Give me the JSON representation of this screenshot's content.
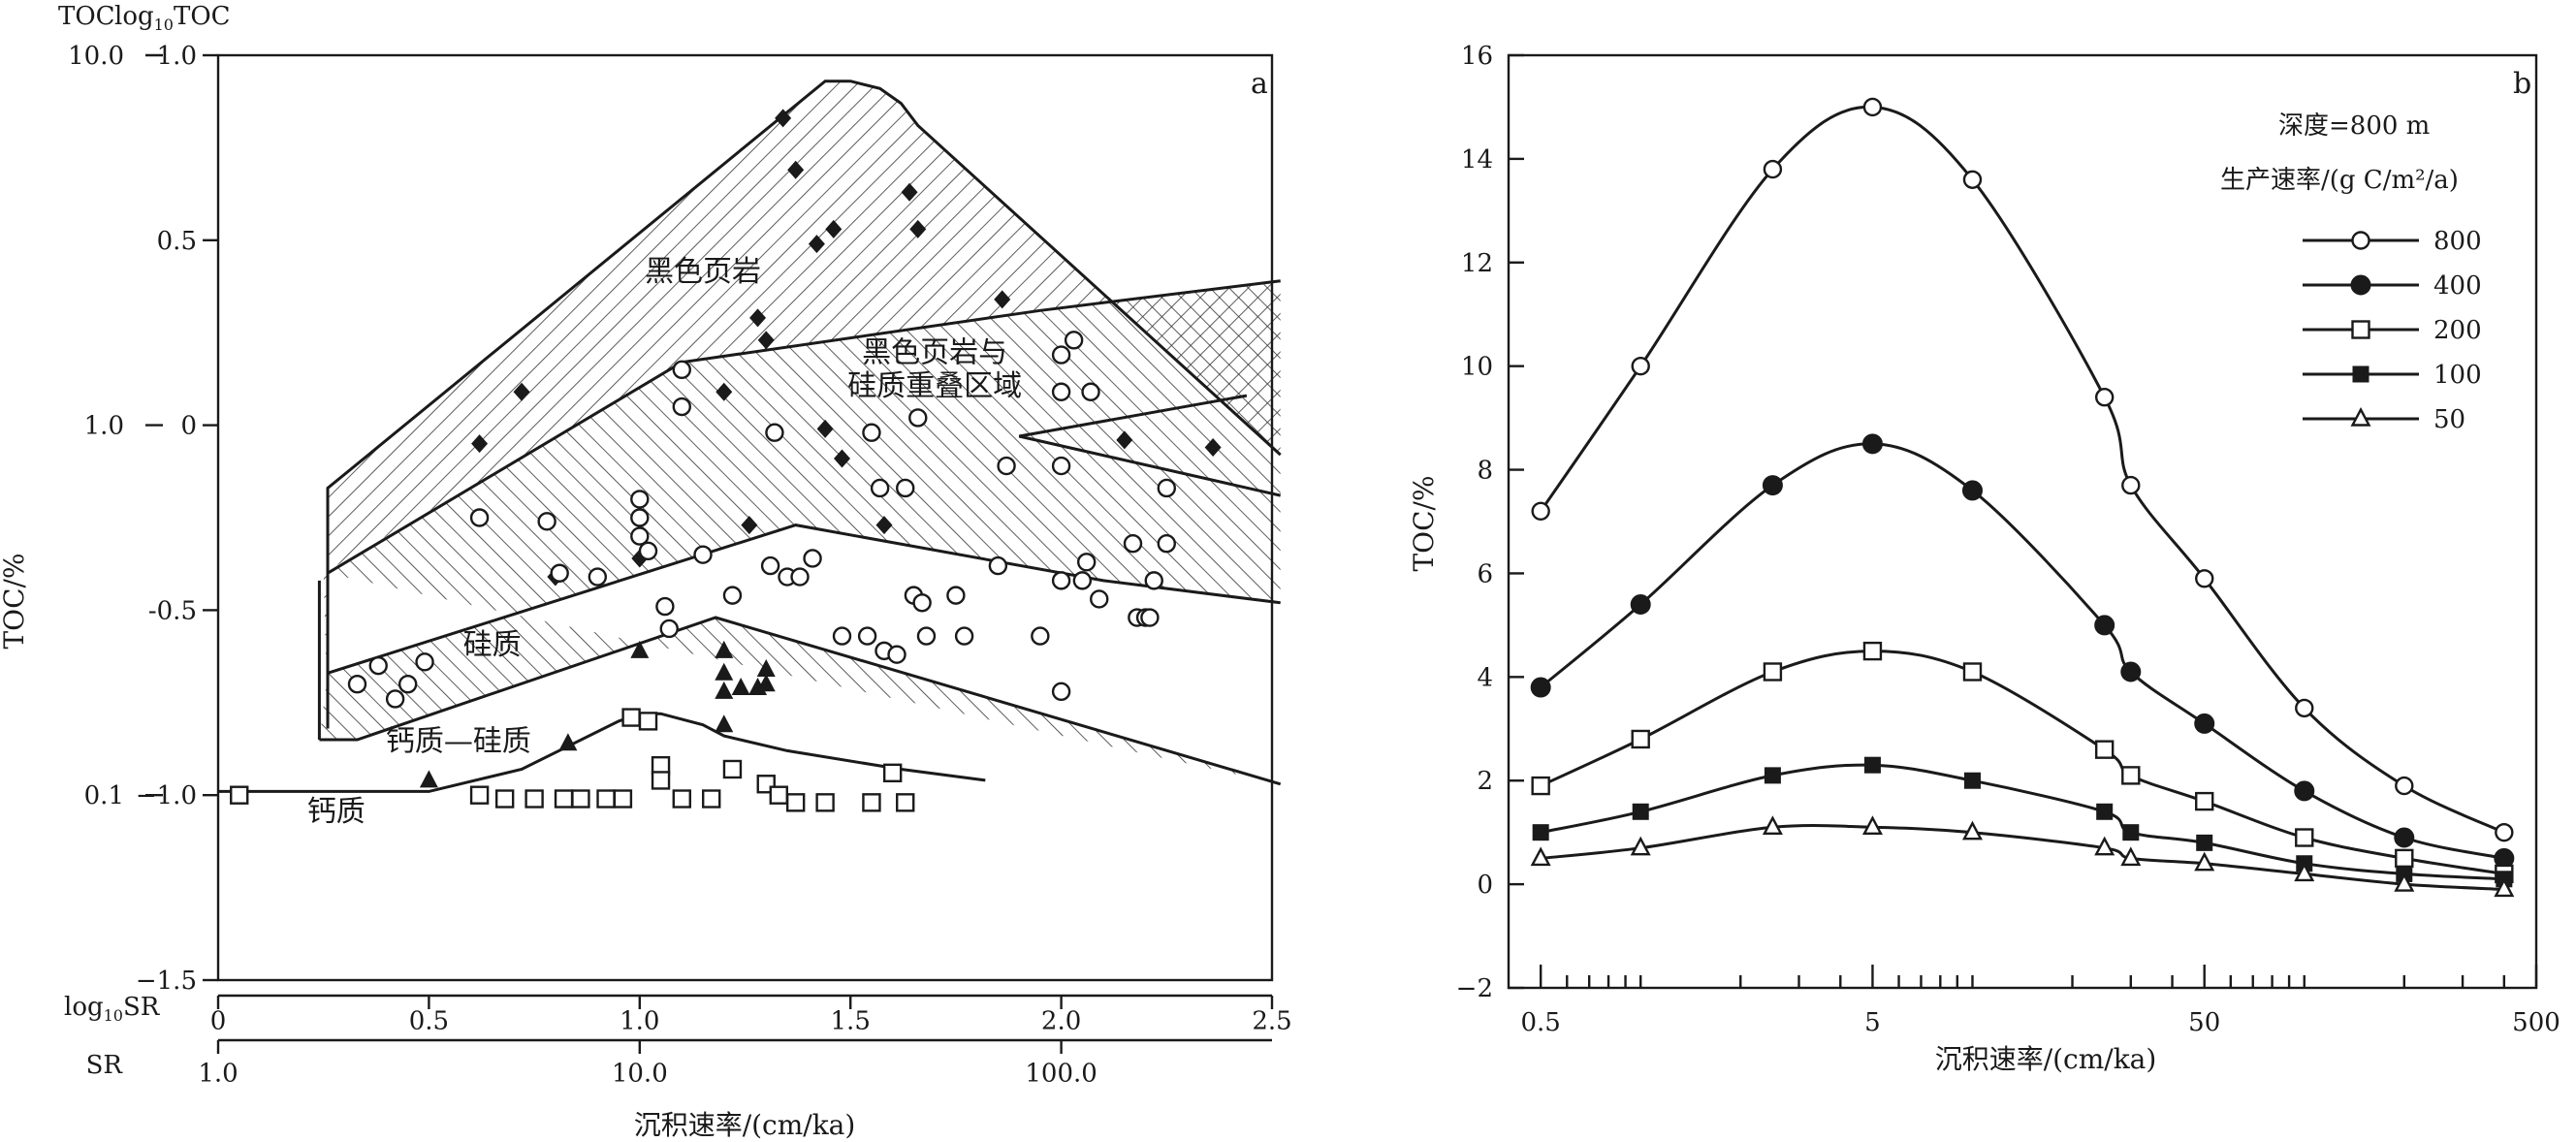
{
  "chart_data": [
    {
      "panel": "a",
      "type": "scatter",
      "xlabel": "沉积速率/(cm/ka)",
      "ylabel": "TOC/%",
      "top_axis_labels": [
        "TOC",
        "log10TOC"
      ],
      "x_axis_names": {
        "log": "log10SR",
        "linear": "SR"
      },
      "x_log_ticks": [
        {
          "value": 0,
          "label": "0"
        },
        {
          "value": 0.5,
          "label": "0.5"
        },
        {
          "value": 1.0,
          "label": "1.0"
        },
        {
          "value": 1.5,
          "label": "1.5"
        },
        {
          "value": 2.0,
          "label": "2.0"
        },
        {
          "value": 2.5,
          "label": "2.5"
        }
      ],
      "x_sr_ticks": [
        {
          "value": 0,
          "label": "1.0"
        },
        {
          "value": 1,
          "label": "10.0"
        },
        {
          "value": 2,
          "label": "100.0"
        }
      ],
      "y_log_ticks": [
        {
          "value": 1.0,
          "label": "1.0"
        },
        {
          "value": 0.5,
          "label": "0.5"
        },
        {
          "value": 0,
          "label": "0"
        },
        {
          "value": -0.5,
          "label": "-0.5"
        },
        {
          "value": -1.0,
          "label": "−1.0"
        },
        {
          "value": -1.5,
          "label": "−1.5"
        }
      ],
      "y_toc_ticks": [
        {
          "value": 1.0,
          "label": "10.0"
        },
        {
          "value": 0,
          "label": "1.0"
        },
        {
          "value": -1.0,
          "label": "0.1"
        }
      ],
      "xlim": [
        0,
        2.5
      ],
      "ylim": [
        -1.5,
        1.0
      ],
      "panel_label": "a",
      "region_labels": [
        {
          "text": "黑色页岩",
          "x": 1.15,
          "y": 0.39
        },
        {
          "text": "黑色页岩与",
          "x": 1.7,
          "y": 0.17
        },
        {
          "text": "硅质重叠区域",
          "x": 1.7,
          "y": 0.08
        },
        {
          "text": "硅质",
          "x": 0.65,
          "y": -0.62
        },
        {
          "text": "钙质—硅质",
          "x": 0.57,
          "y": -0.88
        },
        {
          "text": "钙质",
          "x": 0.28,
          "y": -1.07
        }
      ],
      "regions": {
        "black_shale": [
          [
            0.26,
            -0.81
          ],
          [
            0.26,
            -0.17
          ],
          [
            1.44,
            0.93
          ],
          [
            1.5,
            0.93
          ],
          [
            1.57,
            0.91
          ],
          [
            1.62,
            0.87
          ],
          [
            1.66,
            0.81
          ],
          [
            2.52,
            -0.08
          ],
          [
            2.52,
            0.39
          ],
          [
            1.95,
            0.31
          ],
          [
            1.1,
            0.17
          ],
          [
            0.25,
            -0.4
          ]
        ],
        "siliceous": [
          [
            0.26,
            -0.4
          ],
          [
            1.1,
            0.17
          ],
          [
            1.95,
            0.31
          ],
          [
            2.52,
            0.39
          ],
          [
            2.52,
            -0.48
          ],
          [
            2.1,
            -0.42
          ],
          [
            1.37,
            -0.27
          ],
          [
            0.26,
            -0.67
          ],
          [
            0.24,
            -0.85
          ],
          [
            0.33,
            -0.85
          ],
          [
            1.18,
            -0.52
          ],
          [
            2.52,
            -0.97
          ]
        ],
        "boundaries": [
          [
            [
              0.26,
              -0.82
            ],
            [
              0.26,
              -0.17
            ],
            [
              1.44,
              0.93
            ],
            [
              1.5,
              0.93
            ],
            [
              1.57,
              0.91
            ],
            [
              1.62,
              0.87
            ],
            [
              1.66,
              0.81
            ],
            [
              2.52,
              -0.08
            ]
          ],
          [
            [
              0.26,
              -0.4
            ],
            [
              1.1,
              0.17
            ],
            [
              1.95,
              0.31
            ],
            [
              2.52,
              0.39
            ]
          ],
          [
            [
              0.24,
              -0.85
            ],
            [
              0.24,
              -0.42
            ]
          ],
          [
            [
              0.24,
              -0.85
            ],
            [
              0.33,
              -0.85
            ],
            [
              1.18,
              -0.52
            ],
            [
              2.52,
              -0.97
            ]
          ],
          [
            [
              0.26,
              -0.67
            ],
            [
              1.37,
              -0.27
            ],
            [
              2.1,
              -0.42
            ],
            [
              2.52,
              -0.48
            ]
          ],
          [
            [
              1.9,
              -0.03
            ],
            [
              2.52,
              -0.19
            ]
          ],
          [
            [
              1.9,
              -0.03
            ],
            [
              2.44,
              0.08
            ]
          ],
          [
            [
              0.0,
              -0.99
            ],
            [
              0.5,
              -0.99
            ],
            [
              0.72,
              -0.93
            ],
            [
              0.95,
              -0.8
            ],
            [
              1.0,
              -0.78
            ],
            [
              1.05,
              -0.78
            ],
            [
              1.15,
              -0.81
            ],
            [
              1.2,
              -0.84
            ],
            [
              1.35,
              -0.88
            ],
            [
              1.62,
              -0.93
            ],
            [
              1.82,
              -0.96
            ]
          ]
        ]
      },
      "series": [
        {
          "name": "black shale",
          "marker": "diamond-filled",
          "points": [
            [
              0.62,
              -0.05
            ],
            [
              0.72,
              0.09
            ],
            [
              0.8,
              -0.41
            ],
            [
              1.0,
              -0.36
            ],
            [
              1.2,
              0.09
            ],
            [
              1.26,
              -0.27
            ],
            [
              1.28,
              0.29
            ],
            [
              1.3,
              0.23
            ],
            [
              1.34,
              0.83
            ],
            [
              1.37,
              0.69
            ],
            [
              1.42,
              0.49
            ],
            [
              1.46,
              0.53
            ],
            [
              1.44,
              -0.01
            ],
            [
              1.48,
              -0.09
            ],
            [
              1.58,
              -0.27
            ],
            [
              1.64,
              0.63
            ],
            [
              1.66,
              0.53
            ],
            [
              1.86,
              0.34
            ],
            [
              2.15,
              -0.04
            ],
            [
              2.36,
              -0.06
            ]
          ]
        },
        {
          "name": "siliceous",
          "marker": "circle-open",
          "points": [
            [
              0.33,
              -0.7
            ],
            [
              0.38,
              -0.65
            ],
            [
              0.42,
              -0.74
            ],
            [
              0.45,
              -0.7
            ],
            [
              0.49,
              -0.64
            ],
            [
              0.62,
              -0.25
            ],
            [
              0.78,
              -0.26
            ],
            [
              0.81,
              -0.4
            ],
            [
              0.9,
              -0.41
            ],
            [
              1.0,
              -0.2
            ],
            [
              1.0,
              -0.25
            ],
            [
              1.0,
              -0.3
            ],
            [
              1.02,
              -0.34
            ],
            [
              1.06,
              -0.49
            ],
            [
              1.07,
              -0.55
            ],
            [
              1.1,
              0.05
            ],
            [
              1.1,
              0.15
            ],
            [
              1.15,
              -0.35
            ],
            [
              1.22,
              -0.46
            ],
            [
              1.31,
              -0.38
            ],
            [
              1.32,
              -0.02
            ],
            [
              1.35,
              -0.41
            ],
            [
              1.38,
              -0.41
            ],
            [
              1.41,
              -0.36
            ],
            [
              1.48,
              -0.57
            ],
            [
              1.54,
              -0.57
            ],
            [
              1.55,
              -0.02
            ],
            [
              1.57,
              -0.17
            ],
            [
              1.58,
              -0.61
            ],
            [
              1.61,
              -0.62
            ],
            [
              1.63,
              -0.17
            ],
            [
              1.65,
              -0.46
            ],
            [
              1.66,
              0.02
            ],
            [
              1.67,
              -0.48
            ],
            [
              1.68,
              -0.57
            ],
            [
              1.75,
              -0.46
            ],
            [
              1.77,
              -0.57
            ],
            [
              1.85,
              -0.38
            ],
            [
              1.87,
              -0.11
            ],
            [
              1.95,
              -0.57
            ],
            [
              2.0,
              0.09
            ],
            [
              2.0,
              0.19
            ],
            [
              2.0,
              -0.11
            ],
            [
              2.0,
              -0.42
            ],
            [
              2.0,
              -0.72
            ],
            [
              2.03,
              0.23
            ],
            [
              2.05,
              -0.42
            ],
            [
              2.06,
              -0.37
            ],
            [
              2.07,
              0.09
            ],
            [
              2.09,
              -0.47
            ],
            [
              2.17,
              -0.32
            ],
            [
              2.18,
              -0.52
            ],
            [
              2.2,
              -0.52
            ],
            [
              2.21,
              -0.52
            ],
            [
              2.22,
              -0.42
            ],
            [
              2.25,
              -0.32
            ],
            [
              2.25,
              -0.17
            ]
          ]
        },
        {
          "name": "calcareous-siliceous",
          "marker": "triangle-filled",
          "points": [
            [
              0.5,
              -0.96
            ],
            [
              0.83,
              -0.86
            ],
            [
              1.0,
              -0.61
            ],
            [
              1.2,
              -0.61
            ],
            [
              1.2,
              -0.67
            ],
            [
              1.2,
              -0.72
            ],
            [
              1.2,
              -0.81
            ],
            [
              1.24,
              -0.71
            ],
            [
              1.28,
              -0.71
            ],
            [
              1.3,
              -0.66
            ],
            [
              1.3,
              -0.7
            ]
          ]
        },
        {
          "name": "calcareous",
          "marker": "square-open",
          "points": [
            [
              0.05,
              -1.0
            ],
            [
              0.62,
              -1.0
            ],
            [
              0.68,
              -1.01
            ],
            [
              0.75,
              -1.01
            ],
            [
              0.82,
              -1.01
            ],
            [
              0.86,
              -1.01
            ],
            [
              0.92,
              -1.01
            ],
            [
              0.96,
              -1.01
            ],
            [
              0.98,
              -0.79
            ],
            [
              1.02,
              -0.8
            ],
            [
              1.05,
              -0.92
            ],
            [
              1.05,
              -0.96
            ],
            [
              1.1,
              -1.01
            ],
            [
              1.17,
              -1.01
            ],
            [
              1.22,
              -0.93
            ],
            [
              1.3,
              -0.97
            ],
            [
              1.33,
              -1.0
            ],
            [
              1.37,
              -1.02
            ],
            [
              1.44,
              -1.02
            ],
            [
              1.55,
              -1.02
            ],
            [
              1.6,
              -0.94
            ],
            [
              1.63,
              -1.02
            ]
          ]
        }
      ]
    },
    {
      "panel": "b",
      "type": "line",
      "xscale": "log",
      "xlabel": "沉积速率/(cm/ka)",
      "ylabel": "TOC/%",
      "xlim": [
        0.4,
        500
      ],
      "ylim": [
        -2,
        16
      ],
      "x_ticks": [
        {
          "value": 0.5,
          "label": "0.5"
        },
        {
          "value": 5,
          "label": "5"
        },
        {
          "value": 50,
          "label": "50"
        },
        {
          "value": 500,
          "label": "500"
        }
      ],
      "y_ticks": [
        {
          "value": -2,
          "label": "−2"
        },
        {
          "value": 0,
          "label": "0"
        },
        {
          "value": 2,
          "label": "2"
        },
        {
          "value": 4,
          "label": "4"
        },
        {
          "value": 6,
          "label": "6"
        },
        {
          "value": 8,
          "label": "8"
        },
        {
          "value": 10,
          "label": "10"
        },
        {
          "value": 12,
          "label": "12"
        },
        {
          "value": 14,
          "label": "14"
        },
        {
          "value": 16,
          "label": "16"
        }
      ],
      "panel_label": "b",
      "legend_title_1": "深度=800 m",
      "legend_title_2": "生产速率/(g C/m²/a)",
      "legend_position": "top-right",
      "x": [
        0.5,
        1,
        2.5,
        5,
        10,
        25,
        30,
        50,
        100,
        200,
        400
      ],
      "series": [
        {
          "name": "800",
          "marker": "circle-open",
          "values": [
            7.2,
            10.0,
            13.8,
            15.0,
            13.6,
            9.4,
            7.7,
            5.9,
            3.4,
            1.9,
            1.0
          ]
        },
        {
          "name": "400",
          "marker": "circle-filled",
          "values": [
            3.8,
            5.4,
            7.7,
            8.5,
            7.6,
            5.0,
            4.1,
            3.1,
            1.8,
            0.9,
            0.5
          ]
        },
        {
          "name": "200",
          "marker": "square-open",
          "values": [
            1.9,
            2.8,
            4.1,
            4.5,
            4.1,
            2.6,
            2.1,
            1.6,
            0.9,
            0.5,
            0.2
          ]
        },
        {
          "name": "100",
          "marker": "square-filled",
          "values": [
            1.0,
            1.4,
            2.1,
            2.3,
            2.0,
            1.4,
            1.0,
            0.8,
            0.4,
            0.2,
            0.1
          ]
        },
        {
          "name": "50",
          "marker": "triangle-open",
          "values": [
            0.5,
            0.7,
            1.1,
            1.1,
            1.0,
            0.7,
            0.5,
            0.4,
            0.2,
            0.0,
            -0.1
          ]
        }
      ]
    }
  ]
}
